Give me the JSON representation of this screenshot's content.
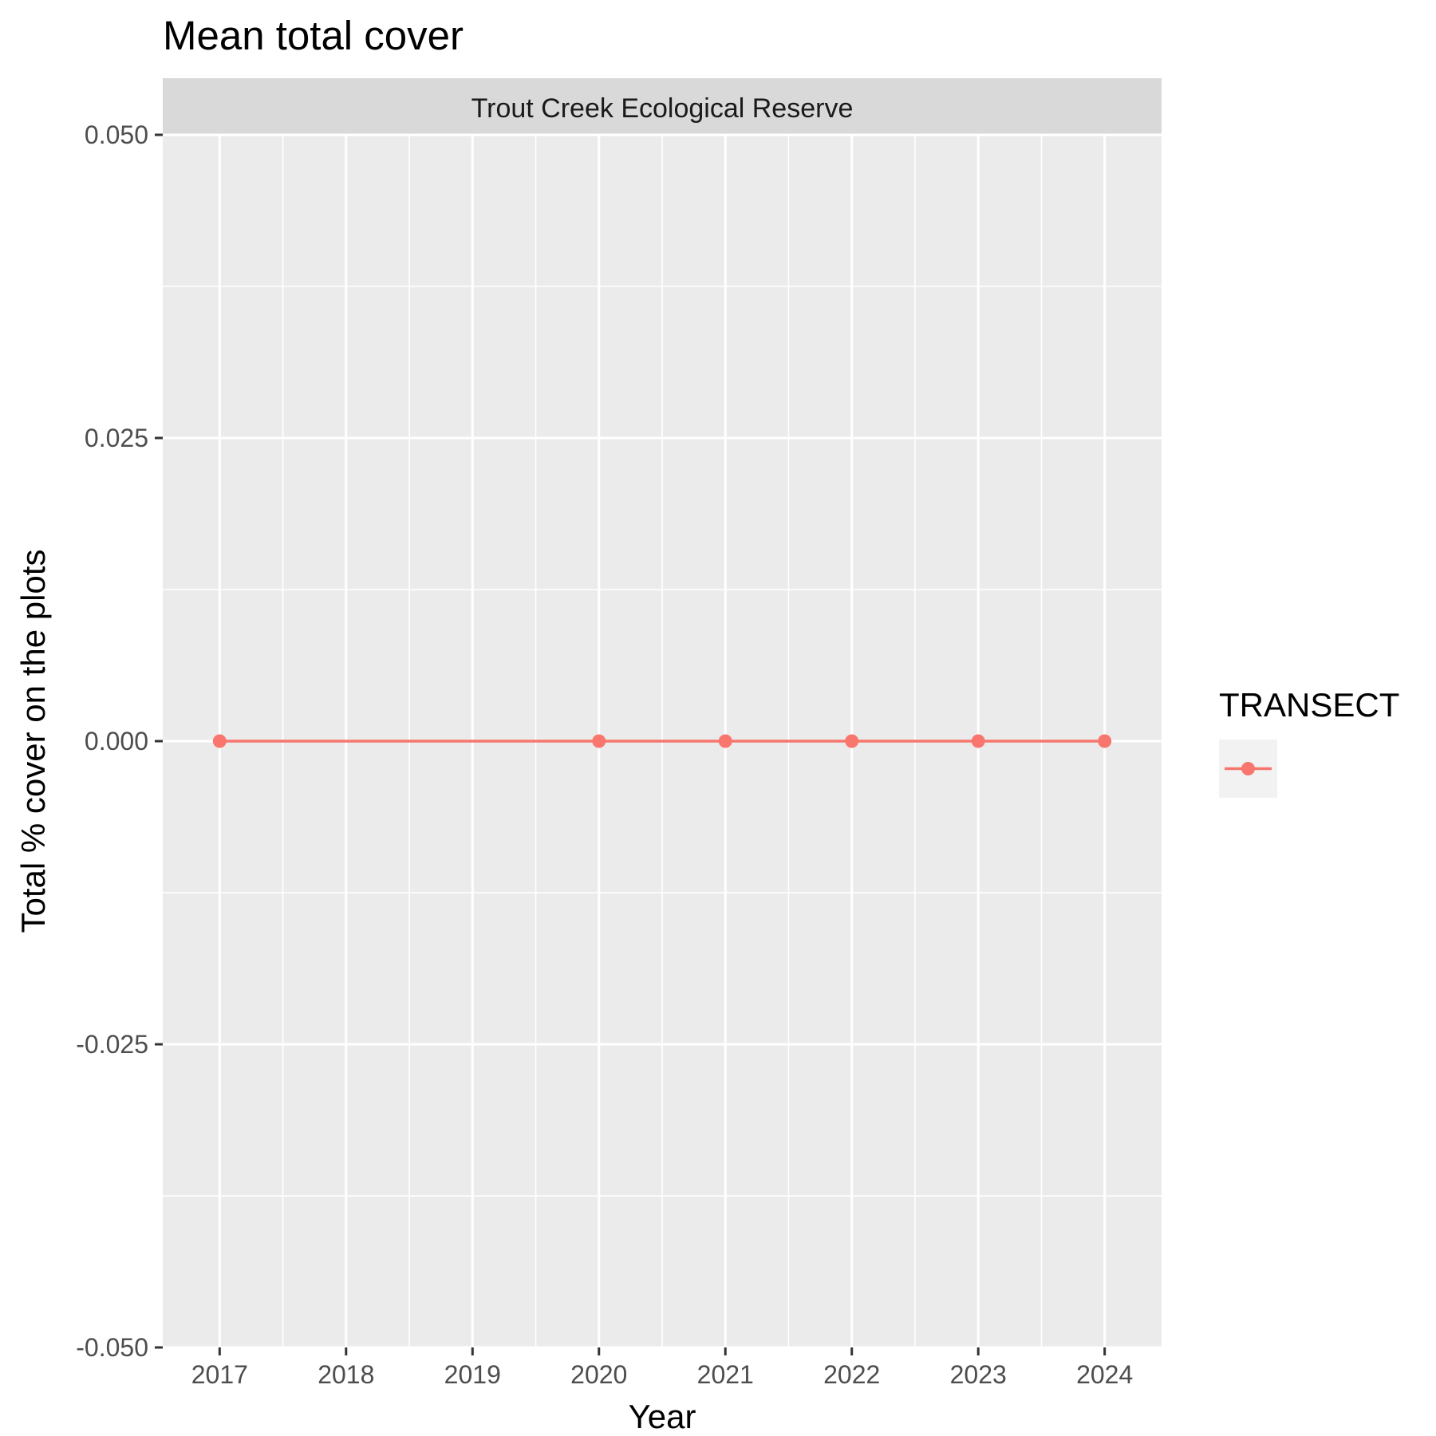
{
  "chart_data": {
    "type": "line",
    "title": "Mean total cover",
    "facet_label": "Trout Creek Ecological Reserve",
    "xlabel": "Year",
    "ylabel": "Total % cover on the plots",
    "x_ticks": [
      2017,
      2018,
      2019,
      2020,
      2021,
      2022,
      2023,
      2024
    ],
    "y_ticks": [
      "-0.050",
      "-0.025",
      "0.000",
      "0.025",
      "0.050"
    ],
    "xlim": [
      2016.55,
      2024.45
    ],
    "ylim": [
      -0.05,
      0.05
    ],
    "grid": true,
    "legend": {
      "title": "TRANSECT",
      "position": "right",
      "entries": [
        ""
      ]
    },
    "series": [
      {
        "color": "#F8766D",
        "points": [
          {
            "x": 2017,
            "y": 0
          },
          {
            "x": 2020,
            "y": 0
          },
          {
            "x": 2021,
            "y": 0
          },
          {
            "x": 2022,
            "y": 0
          },
          {
            "x": 2023,
            "y": 0
          },
          {
            "x": 2024,
            "y": 0
          }
        ]
      }
    ],
    "colors": {
      "panel": "#EBEBEB",
      "strip": "#D9D9D9",
      "grid": "#FFFFFF",
      "legend_key": "#F2F2F2"
    }
  }
}
